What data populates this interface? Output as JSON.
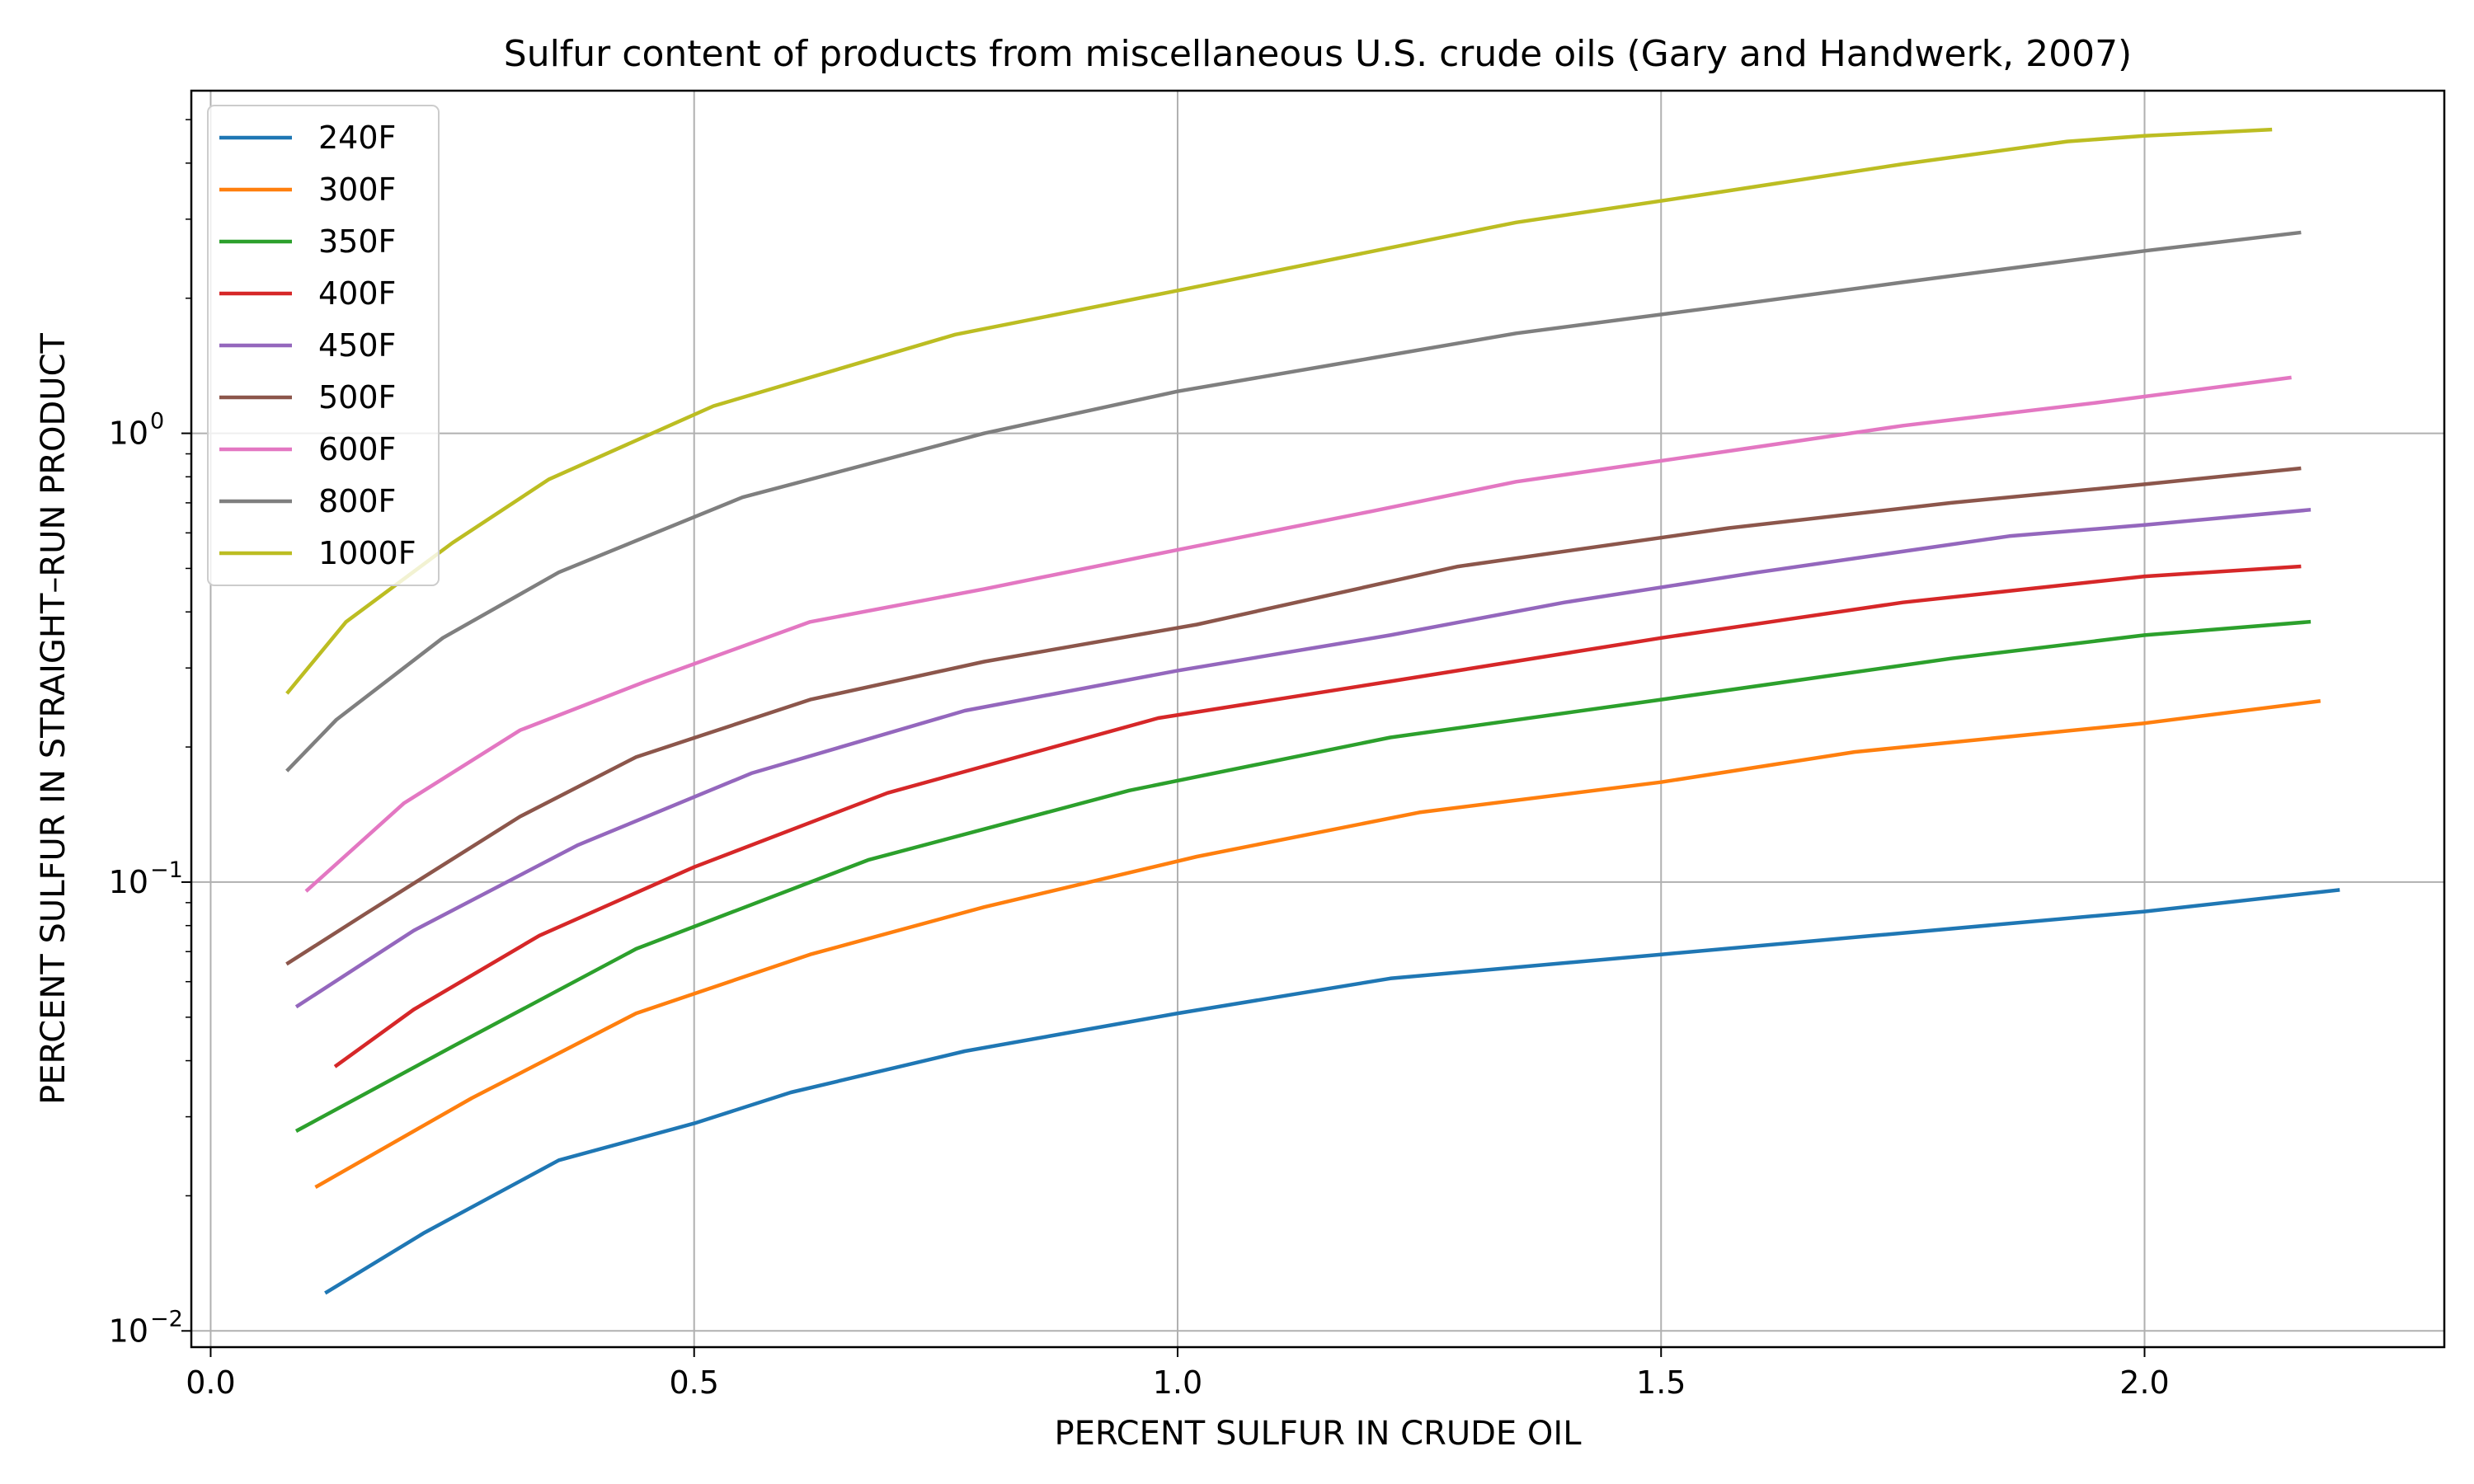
{
  "chart_data": {
    "type": "line",
    "title": "Sulfur content of products from miscellaneous U.S. crude oils (Gary and Handwerk, 2007)",
    "xlabel": "PERCENT  SULFUR  IN  CRUDE  OIL",
    "ylabel": "PERCENT  SULFUR  IN  STRAIGHT–RUN  PRODUCT",
    "xlim": [
      -0.02,
      2.31
    ],
    "ylim": [
      0.0092,
      5.8
    ],
    "yscale": "log",
    "grid": true,
    "legend_position": "top-left",
    "xticks": [
      {
        "value": 0.0,
        "label": "0.0"
      },
      {
        "value": 0.5,
        "label": "0.5"
      },
      {
        "value": 1.0,
        "label": "1.0"
      },
      {
        "value": 1.5,
        "label": "1.5"
      },
      {
        "value": 2.0,
        "label": "2.0"
      }
    ],
    "yticks": [
      {
        "value": 0.01,
        "base": "10",
        "exp": "−2"
      },
      {
        "value": 0.1,
        "base": "10",
        "exp": "−1"
      },
      {
        "value": 1,
        "base": "10",
        "exp": "0"
      }
    ],
    "series": [
      {
        "name": "240F",
        "color": "#1f77b4",
        "x": [
          0.12,
          0.22,
          0.36,
          0.5,
          0.6,
          0.78,
          1.0,
          1.22,
          1.5,
          1.72,
          2.0,
          2.2
        ],
        "y": [
          0.0122,
          0.0165,
          0.024,
          0.029,
          0.034,
          0.042,
          0.051,
          0.061,
          0.069,
          0.076,
          0.086,
          0.096
        ]
      },
      {
        "name": "300F",
        "color": "#ff7f0e",
        "x": [
          0.11,
          0.27,
          0.44,
          0.62,
          0.8,
          1.02,
          1.25,
          1.5,
          1.7,
          2.0,
          2.18
        ],
        "y": [
          0.021,
          0.033,
          0.051,
          0.069,
          0.088,
          0.114,
          0.143,
          0.167,
          0.195,
          0.226,
          0.253
        ]
      },
      {
        "name": "350F",
        "color": "#2ca02c",
        "x": [
          0.09,
          0.25,
          0.44,
          0.68,
          0.95,
          1.22,
          1.5,
          1.8,
          2.0,
          2.17
        ],
        "y": [
          0.028,
          0.043,
          0.071,
          0.112,
          0.16,
          0.21,
          0.255,
          0.315,
          0.355,
          0.38
        ]
      },
      {
        "name": "400F",
        "color": "#d62728",
        "x": [
          0.13,
          0.21,
          0.34,
          0.5,
          0.7,
          0.98,
          1.22,
          1.5,
          1.75,
          2.0,
          2.16
        ],
        "y": [
          0.039,
          0.052,
          0.076,
          0.108,
          0.158,
          0.232,
          0.28,
          0.35,
          0.42,
          0.48,
          0.505
        ]
      },
      {
        "name": "450F",
        "color": "#9467bd",
        "x": [
          0.09,
          0.21,
          0.38,
          0.56,
          0.78,
          1.0,
          1.22,
          1.4,
          1.6,
          1.86,
          2.0,
          2.17
        ],
        "y": [
          0.053,
          0.078,
          0.121,
          0.175,
          0.241,
          0.296,
          0.355,
          0.42,
          0.49,
          0.59,
          0.625,
          0.675
        ]
      },
      {
        "name": "500F",
        "color": "#8c564b",
        "x": [
          0.08,
          0.16,
          0.32,
          0.44,
          0.62,
          0.8,
          1.02,
          1.29,
          1.57,
          1.8,
          2.0,
          2.16
        ],
        "y": [
          0.066,
          0.085,
          0.14,
          0.19,
          0.255,
          0.31,
          0.375,
          0.505,
          0.615,
          0.7,
          0.77,
          0.835
        ]
      },
      {
        "name": "600F",
        "color": "#e377c2",
        "x": [
          0.1,
          0.2,
          0.32,
          0.45,
          0.62,
          0.8,
          1.0,
          1.2,
          1.35,
          1.55,
          1.75,
          1.95,
          2.15
        ],
        "y": [
          0.096,
          0.15,
          0.218,
          0.28,
          0.38,
          0.45,
          0.55,
          0.67,
          0.78,
          0.9,
          1.04,
          1.17,
          1.33
        ]
      },
      {
        "name": "800F",
        "color": "#7f7f7f",
        "x": [
          0.08,
          0.13,
          0.24,
          0.36,
          0.55,
          0.8,
          1.0,
          1.2,
          1.35,
          1.55,
          1.75,
          2.0,
          2.16
        ],
        "y": [
          0.178,
          0.23,
          0.35,
          0.49,
          0.72,
          1.0,
          1.24,
          1.47,
          1.67,
          1.9,
          2.17,
          2.55,
          2.8
        ]
      },
      {
        "name": "1000F",
        "color": "#bcbd22",
        "x": [
          0.08,
          0.14,
          0.25,
          0.35,
          0.52,
          0.77,
          1.0,
          1.2,
          1.35,
          1.55,
          1.75,
          1.92,
          2.0,
          2.13
        ],
        "y": [
          0.265,
          0.38,
          0.57,
          0.79,
          1.15,
          1.66,
          2.08,
          2.54,
          2.95,
          3.42,
          3.98,
          4.47,
          4.6,
          4.75
        ]
      }
    ]
  }
}
